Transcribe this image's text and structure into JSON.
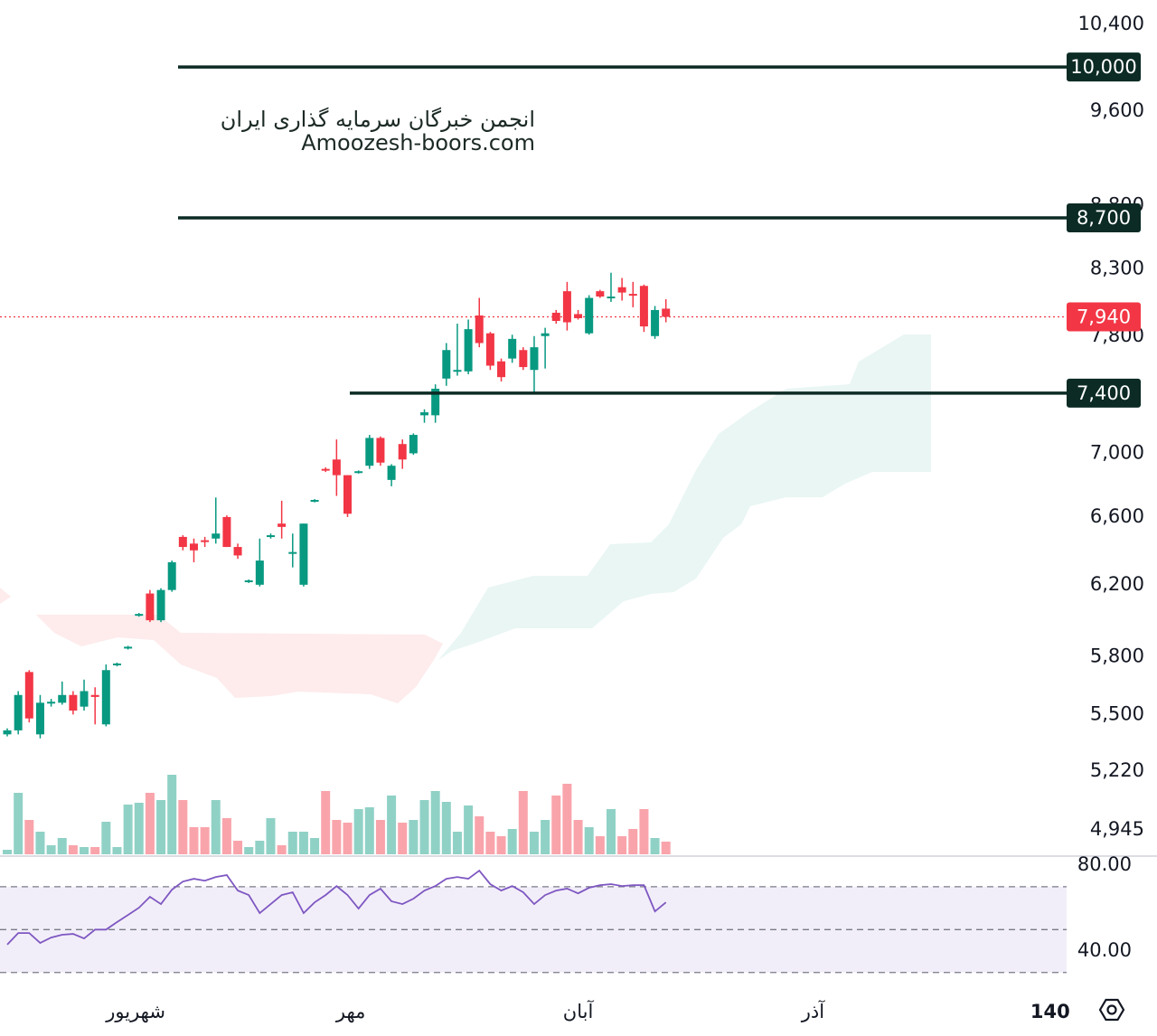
{
  "watermark": {
    "title": "انجمن خبرگان سرمایه گذاری ایران",
    "site": "Amoozesh-boors.com"
  },
  "chart_data": [
    {
      "type": "candlestick",
      "log_scale": true,
      "up_color": "#089981",
      "down_color": "#f23645",
      "categories": [
        null,
        null,
        null,
        null,
        null,
        null,
        null,
        null,
        null,
        null,
        null,
        null,
        null,
        null,
        null,
        null,
        null,
        null,
        null,
        null,
        null,
        null,
        null,
        null,
        null,
        null,
        null,
        null,
        null,
        null,
        null,
        null,
        null,
        null,
        null,
        null,
        null,
        null,
        null,
        null,
        null,
        null,
        null,
        null,
        null,
        null,
        null,
        null,
        null,
        null,
        null,
        null,
        null,
        null,
        null,
        null,
        null,
        null,
        null,
        null,
        null
      ],
      "open": [
        5400,
        5420,
        5720,
        5400,
        5560,
        5560,
        5600,
        5540,
        5600,
        5450,
        5760,
        5850,
        6030,
        6150,
        6000,
        6170,
        6480,
        6440,
        6460,
        6470,
        6600,
        6420,
        6220,
        6200,
        6480,
        6560,
        6380,
        6200,
        6700,
        6900,
        6960,
        6860,
        6880,
        6920,
        7100,
        6830,
        7060,
        7000,
        7250,
        7250,
        7500,
        7550,
        7550,
        7950,
        7820,
        7620,
        7640,
        7700,
        7560,
        7800,
        7970,
        8130,
        7960,
        7820,
        8130,
        8080,
        8160,
        8110,
        8170,
        7800,
        8000
      ],
      "high": [
        5430,
        5620,
        5730,
        5600,
        5580,
        5670,
        5620,
        5680,
        5640,
        5760,
        5770,
        5860,
        6040,
        6170,
        6180,
        6340,
        6490,
        6470,
        6480,
        6720,
        6610,
        6440,
        6230,
        6470,
        6500,
        6700,
        6500,
        6560,
        6710,
        6910,
        7090,
        6860,
        6890,
        7120,
        7110,
        6930,
        7090,
        7130,
        7290,
        7460,
        7750,
        7890,
        7920,
        8080,
        7830,
        7640,
        7810,
        7720,
        7800,
        7860,
        7990,
        8200,
        7990,
        8100,
        8140,
        8270,
        8230,
        8200,
        8180,
        8020,
        8070
      ],
      "low": [
        5390,
        5400,
        5460,
        5380,
        5540,
        5550,
        5500,
        5520,
        5450,
        5440,
        5750,
        5840,
        6020,
        5990,
        5990,
        6160,
        6400,
        6330,
        6420,
        6440,
        6420,
        6350,
        6210,
        6190,
        6470,
        6470,
        6300,
        6190,
        6690,
        6880,
        6730,
        6600,
        6870,
        6900,
        6920,
        6790,
        6900,
        6990,
        7200,
        7200,
        7450,
        7520,
        7530,
        7720,
        7560,
        7480,
        7610,
        7560,
        7400,
        7570,
        7890,
        7840,
        7920,
        7810,
        8080,
        8050,
        8060,
        8010,
        7830,
        7780,
        7900
      ],
      "close": [
        5420,
        5600,
        5480,
        5560,
        5565,
        5600,
        5520,
        5620,
        5590,
        5730,
        5765,
        5855,
        6035,
        6000,
        6170,
        6330,
        6420,
        6400,
        6450,
        6500,
        6420,
        6370,
        6225,
        6340,
        6490,
        6540,
        6390,
        6560,
        6705,
        6890,
        6860,
        6620,
        6885,
        7100,
        6940,
        6920,
        6960,
        7120,
        7270,
        7430,
        7700,
        7560,
        7850,
        7750,
        7590,
        7510,
        7780,
        7580,
        7720,
        7820,
        7910,
        7900,
        7930,
        8080,
        8090,
        8090,
        8120,
        8100,
        7870,
        7990,
        7940
      ],
      "xlim": [
        -0.66,
        96.5
      ],
      "xticks": [
        {
          "value": 11.7,
          "label": "شهریور"
        },
        {
          "value": 31.3,
          "label": "مهر"
        },
        {
          "value": 52,
          "label": "آبان"
        },
        {
          "value": 73.4,
          "label": "آذر"
        },
        {
          "value": 95,
          "label": "140"
        }
      ],
      "ylim": [
        4834,
        10638
      ],
      "yticks": [
        {
          "value": 4945,
          "label": "4,945"
        },
        {
          "value": 5220,
          "label": "5,220"
        },
        {
          "value": 5500,
          "label": "5,500"
        },
        {
          "value": 5800,
          "label": "5,800"
        },
        {
          "value": 6200,
          "label": "6,200"
        },
        {
          "value": 6600,
          "label": "6,600"
        },
        {
          "value": 7000,
          "label": "7,000"
        },
        {
          "value": 7800,
          "label": "7,800"
        },
        {
          "value": 8300,
          "label": "8,300"
        },
        {
          "value": 8800,
          "label": "8,800"
        },
        {
          "value": 9600,
          "label": "9,600"
        },
        {
          "value": 10400,
          "label": "10,400"
        }
      ],
      "levels": [
        {
          "value": 10000,
          "label": "10,000"
        },
        {
          "value": 8700,
          "label": "8,700"
        },
        {
          "value": 7400,
          "label": "7,400"
        }
      ],
      "level_color": "#0b2b24",
      "last_price": {
        "value": 7940,
        "label": "7,940"
      }
    },
    {
      "type": "bar",
      "up_color": "rgba(8,153,129,0.45)",
      "down_color": "rgba(242,54,69,0.45)",
      "values": [
        5,
        68,
        38,
        25,
        10,
        18,
        10,
        8,
        8,
        36,
        8,
        55,
        57,
        68,
        60,
        88,
        60,
        30,
        30,
        60,
        40,
        15,
        8,
        15,
        40,
        10,
        25,
        25,
        18,
        70,
        38,
        35,
        50,
        52,
        38,
        65,
        35,
        38,
        60,
        70,
        58,
        25,
        54,
        42,
        25,
        20,
        28,
        70,
        25,
        38,
        65,
        78,
        38,
        30,
        20,
        50,
        20,
        28,
        50,
        18,
        14
      ]
    },
    {
      "type": "line",
      "color": "#7e57c2",
      "values": [
        43,
        48.4,
        48.4,
        43.8,
        46.3,
        47.6,
        48,
        45.9,
        50,
        50,
        53.5,
        56.8,
        60.2,
        65.3,
        61.9,
        68.6,
        72.4,
        73.7,
        72.8,
        74.5,
        75.4,
        68.2,
        66.1,
        57.7,
        61.9,
        66.1,
        67.4,
        57.7,
        62.7,
        66.1,
        70.3,
        66.1,
        59.8,
        66.1,
        69.1,
        63.2,
        61.9,
        64.4,
        68.2,
        70.3,
        73.7,
        74.5,
        73.7,
        77.5,
        71.2,
        68.2,
        70.3,
        67.4,
        61.9,
        66.1,
        68.2,
        69.1,
        66.9,
        69.5,
        70.7,
        71.2,
        70.3,
        70.7,
        70.7,
        58.5,
        62.7
      ],
      "ylim": [
        24,
        83
      ],
      "yticks": [
        {
          "value": 80,
          "label": "80.00"
        },
        {
          "value": 40,
          "label": "40.00"
        }
      ],
      "levels": [
        70,
        50,
        30
      ]
    }
  ]
}
